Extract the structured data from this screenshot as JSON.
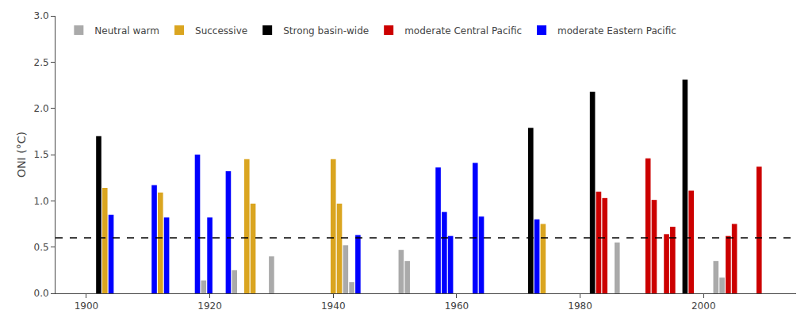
{
  "chart_data": {
    "type": "bar",
    "ylabel": "ONI (°C)",
    "x": [
      1902,
      1903,
      1904,
      1911,
      1912,
      1913,
      1918,
      1919,
      1920,
      1923,
      1924,
      1926,
      1927,
      1930,
      1940,
      1941,
      1942,
      1943,
      1944,
      1951,
      1952,
      1957,
      1958,
      1959,
      1963,
      1964,
      1972,
      1973,
      1974,
      1982,
      1983,
      1984,
      1986,
      1991,
      1992,
      1994,
      1995,
      1997,
      1998,
      2002,
      2003,
      2004,
      2005,
      2009
    ],
    "series": [
      {
        "name": "Neutral warm",
        "color": "#AAAAAA",
        "values": [
          null,
          null,
          null,
          null,
          null,
          null,
          null,
          0.14,
          null,
          null,
          0.25,
          null,
          null,
          0.4,
          null,
          null,
          0.52,
          0.12,
          null,
          0.47,
          0.35,
          null,
          null,
          null,
          null,
          null,
          null,
          null,
          null,
          null,
          null,
          null,
          0.55,
          null,
          null,
          null,
          null,
          null,
          null,
          0.35,
          0.17,
          null,
          null,
          null
        ]
      },
      {
        "name": "Successive",
        "color": "#DAA520",
        "values": [
          null,
          1.14,
          null,
          null,
          1.09,
          null,
          null,
          null,
          null,
          null,
          null,
          1.45,
          0.97,
          null,
          1.45,
          0.97,
          null,
          null,
          null,
          null,
          null,
          null,
          null,
          null,
          null,
          null,
          null,
          null,
          0.75,
          null,
          null,
          null,
          null,
          null,
          null,
          null,
          null,
          null,
          null,
          null,
          null,
          null,
          null,
          null
        ]
      },
      {
        "name": "Strong basin-wide",
        "color": "#000000",
        "values": [
          1.7,
          null,
          null,
          null,
          null,
          null,
          null,
          null,
          null,
          null,
          null,
          null,
          null,
          null,
          null,
          null,
          null,
          null,
          null,
          null,
          null,
          null,
          null,
          null,
          null,
          null,
          1.79,
          null,
          null,
          2.18,
          null,
          null,
          null,
          null,
          null,
          null,
          null,
          2.31,
          null,
          null,
          null,
          null,
          null,
          null
        ]
      },
      {
        "name": "moderate Central Pacific",
        "color": "#CC0000",
        "values": [
          null,
          null,
          null,
          null,
          null,
          null,
          null,
          null,
          null,
          null,
          null,
          null,
          null,
          null,
          null,
          null,
          null,
          null,
          null,
          null,
          null,
          null,
          null,
          null,
          null,
          null,
          null,
          null,
          null,
          null,
          1.1,
          1.03,
          null,
          1.46,
          1.01,
          0.64,
          0.72,
          null,
          1.11,
          null,
          null,
          0.62,
          0.75,
          1.37
        ]
      },
      {
        "name": "moderate Eastern Pacific",
        "color": "#0000FF",
        "values": [
          null,
          null,
          0.85,
          1.17,
          null,
          0.82,
          1.5,
          null,
          0.82,
          1.32,
          null,
          null,
          null,
          null,
          null,
          null,
          null,
          null,
          0.63,
          null,
          null,
          1.36,
          0.88,
          0.62,
          1.41,
          0.83,
          null,
          0.8,
          null,
          null,
          null,
          null,
          null,
          null,
          null,
          null,
          null,
          null,
          null,
          null,
          null,
          null,
          null,
          null
        ]
      }
    ],
    "hline": {
      "y": 0.6,
      "color": "#000000",
      "line_style": "dashed"
    },
    "xlim": [
      1895,
      2015
    ],
    "xticks": [
      1900,
      1920,
      1940,
      1960,
      1980,
      2000
    ],
    "ylim": [
      0.0,
      3.0
    ],
    "yticks": [
      {
        "value": 0.0,
        "label": "0.0"
      },
      0.5,
      {
        "value": 1.0,
        "label": "1.0"
      },
      1.5,
      {
        "value": 2.0,
        "label": "2.0"
      },
      2.5,
      {
        "value": 3.0,
        "label": "3.0"
      }
    ],
    "grid": false,
    "legend": "upper left"
  }
}
